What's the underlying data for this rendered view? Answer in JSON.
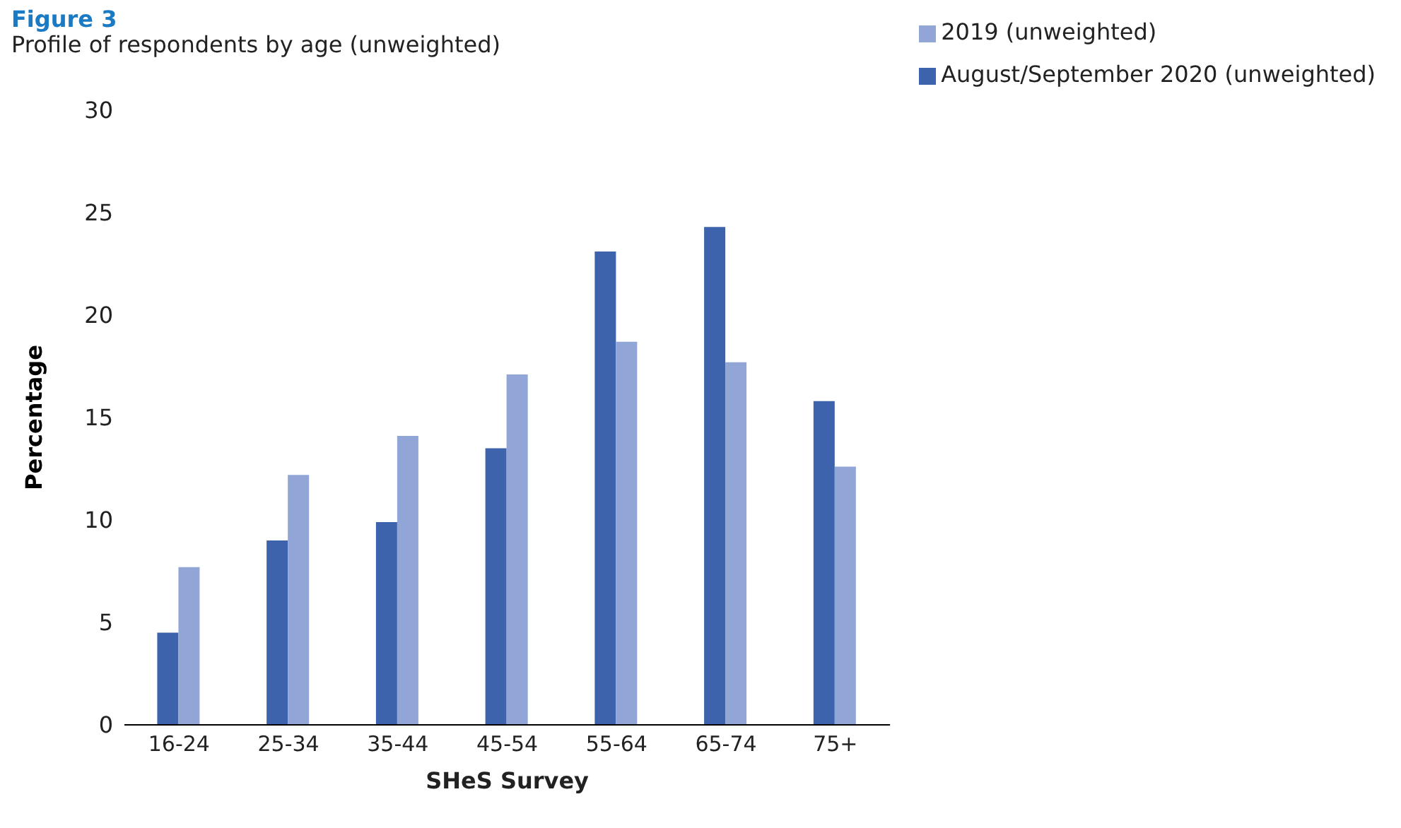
{
  "chart_data": {
    "type": "bar",
    "title": "Figure 3",
    "subtitle": "Profile of respondents by age (unweighted)",
    "xlabel": "SHeS Survey",
    "ylabel": "Percentage",
    "categories": [
      "16-24",
      "25-34",
      "35-44",
      "45-54",
      "55-64",
      "65-74",
      "75+"
    ],
    "series": [
      {
        "name": "August/September 2020 (unweighted)",
        "color": "#3c63ac",
        "values": [
          4.5,
          9.0,
          9.9,
          13.5,
          23.1,
          24.3,
          15.8
        ]
      },
      {
        "name": "2019 (unweighted)",
        "color": "#91a5d6",
        "values": [
          7.7,
          12.2,
          14.1,
          17.1,
          18.7,
          17.7,
          12.6
        ]
      }
    ],
    "ylim": [
      0,
      30
    ],
    "yticks": [
      0,
      5,
      10,
      15,
      20,
      25,
      30
    ],
    "grid": false,
    "legend": "top right"
  }
}
